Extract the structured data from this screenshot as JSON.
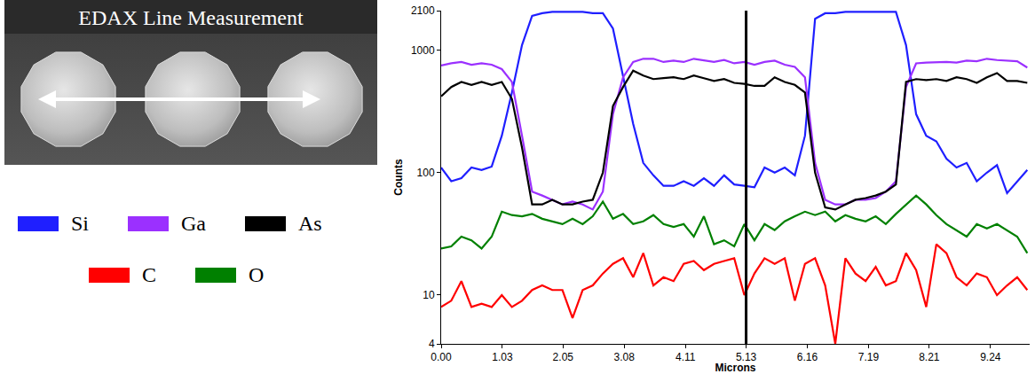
{
  "sem_image": {
    "label": "EDAX Line Measurement"
  },
  "chart_data": {
    "type": "line",
    "xlabel": "Microns",
    "ylabel": "Counts",
    "log": "y",
    "grid": false,
    "legend": "left",
    "vertical_line": 5.13,
    "xlim": [
      0,
      9.9
    ],
    "ylim": [
      4,
      2100
    ],
    "xticks": [
      {
        "value": 0,
        "label": "0.00"
      },
      1.03,
      2.05,
      3.08,
      4.11,
      5.13,
      6.16,
      7.19,
      8.21,
      9.24
    ],
    "yticks": [
      4,
      10,
      100,
      1000,
      2100
    ],
    "x": [
      0,
      0.17,
      0.34,
      0.51,
      0.68,
      0.85,
      1.02,
      1.19,
      1.36,
      1.53,
      1.7,
      1.87,
      2.04,
      2.21,
      2.38,
      2.55,
      2.72,
      2.89,
      3.06,
      3.23,
      3.4,
      3.57,
      3.74,
      3.91,
      4.08,
      4.25,
      4.42,
      4.59,
      4.76,
      4.93,
      5.1,
      5.27,
      5.44,
      5.61,
      5.78,
      5.95,
      6.12,
      6.29,
      6.46,
      6.63,
      6.8,
      6.97,
      7.14,
      7.31,
      7.48,
      7.65,
      7.82,
      7.99,
      8.16,
      8.33,
      8.5,
      8.67,
      8.84,
      9.01,
      9.18,
      9.35,
      9.52,
      9.69,
      9.86
    ],
    "series": [
      {
        "name": "Si",
        "color": "#1f1fff",
        "values": [
          110,
          85,
          90,
          110,
          105,
          112,
          200,
          450,
          1100,
          1900,
          2000,
          2050,
          2050,
          2050,
          2050,
          2000,
          2000,
          1500,
          600,
          250,
          120,
          95,
          78,
          78,
          85,
          78,
          90,
          78,
          95,
          80,
          78,
          76,
          110,
          100,
          110,
          95,
          200,
          1800,
          2000,
          2000,
          2050,
          2050,
          2050,
          2050,
          2050,
          2050,
          1100,
          300,
          200,
          180,
          130,
          110,
          120,
          85,
          100,
          115,
          68,
          85,
          105
        ]
      },
      {
        "name": "Ga",
        "color": "#9b30ff",
        "values": [
          750,
          780,
          800,
          760,
          780,
          760,
          700,
          550,
          200,
          70,
          65,
          60,
          55,
          58,
          55,
          50,
          70,
          300,
          600,
          800,
          850,
          850,
          800,
          820,
          800,
          850,
          820,
          800,
          830,
          780,
          800,
          760,
          800,
          820,
          760,
          730,
          600,
          120,
          60,
          55,
          55,
          60,
          60,
          62,
          70,
          85,
          500,
          780,
          790,
          800,
          800,
          790,
          820,
          810,
          850,
          830,
          820,
          810,
          720
        ]
      },
      {
        "name": "As",
        "color": "#000000",
        "values": [
          420,
          500,
          550,
          520,
          550,
          520,
          550,
          400,
          160,
          55,
          55,
          60,
          55,
          55,
          58,
          60,
          100,
          350,
          500,
          680,
          620,
          580,
          590,
          600,
          580,
          620,
          590,
          560,
          580,
          540,
          530,
          510,
          510,
          600,
          550,
          520,
          450,
          100,
          52,
          50,
          55,
          60,
          62,
          65,
          70,
          80,
          550,
          580,
          570,
          580,
          560,
          600,
          580,
          540,
          600,
          650,
          560,
          560,
          540
        ]
      },
      {
        "name": "C",
        "color": "#ff0000",
        "values": [
          8,
          9,
          13,
          8,
          8.5,
          8,
          10,
          8,
          9,
          11,
          12,
          11,
          11,
          6.5,
          11,
          12,
          15,
          18,
          20,
          14,
          22,
          12,
          14,
          13,
          18,
          19,
          16,
          18,
          19,
          20,
          10,
          15,
          20,
          18,
          20,
          9,
          18,
          20,
          12,
          4,
          20,
          15,
          13,
          17,
          12,
          13,
          22,
          16,
          8,
          26,
          22,
          14,
          12,
          15,
          14,
          10,
          12,
          14,
          11
        ]
      },
      {
        "name": "O",
        "color": "#008000",
        "values": [
          24,
          25,
          30,
          28,
          24,
          30,
          48,
          45,
          44,
          46,
          42,
          40,
          38,
          42,
          38,
          44,
          58,
          42,
          46,
          38,
          40,
          45,
          38,
          36,
          38,
          30,
          44,
          26,
          28,
          25,
          38,
          28,
          38,
          34,
          40,
          44,
          48,
          45,
          48,
          40,
          45,
          42,
          40,
          44,
          38,
          46,
          55,
          65,
          55,
          45,
          38,
          34,
          30,
          38,
          35,
          38,
          34,
          30,
          22
        ]
      }
    ]
  }
}
